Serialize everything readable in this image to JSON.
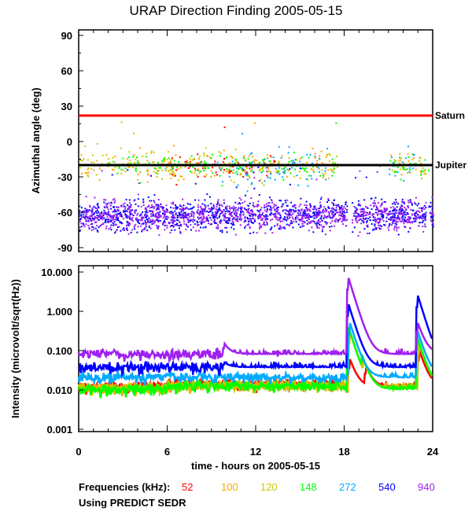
{
  "chart_data": [
    {
      "type": "scatter",
      "title": "URAP Direction Finding  2005-05-15",
      "ylabel": "Azimuthal angle (deg)",
      "xlim": [
        0,
        24
      ],
      "ylim": [
        -90,
        90
      ],
      "yticks": [
        "90",
        "60",
        "30",
        "0",
        "-30",
        "-60",
        "-90"
      ],
      "yticks_values": [
        90,
        60,
        30,
        0,
        -30,
        -60,
        -90
      ],
      "reference_lines": [
        {
          "name": "Saturn",
          "value": 22,
          "color": "#ff0000"
        },
        {
          "name": "Jupiter",
          "value": -20,
          "color": "#000000"
        }
      ],
      "series": [
        {
          "name": "52",
          "center": -21,
          "spread": 4,
          "hours": [
            [
              6,
              12
            ],
            [
              12.5,
              13.5
            ]
          ]
        },
        {
          "name": "100",
          "center": -20,
          "spread": 6,
          "hours": [
            [
              0,
              17.5
            ],
            [
              21,
              23.5
            ]
          ]
        },
        {
          "name": "120",
          "center": -20,
          "spread": 6,
          "hours": [
            [
              0,
              17.5
            ],
            [
              21,
              23.5
            ]
          ]
        },
        {
          "name": "148",
          "center": -20,
          "spread": 5,
          "hours": [
            [
              2,
              17.5
            ],
            [
              21,
              23.8
            ]
          ]
        },
        {
          "name": "272",
          "center": -22,
          "spread": 8,
          "hours": [
            [
              9,
              17
            ],
            [
              21,
              23
            ]
          ]
        },
        {
          "name": "540",
          "center": -62,
          "spread": 6,
          "hours": [
            [
              0,
              18.2
            ],
            [
              18.5,
              23.5
            ],
            [
              23.7,
              24
            ]
          ]
        },
        {
          "name": "940",
          "center": -62,
          "spread": 6,
          "hours": [
            [
              0,
              18.2
            ],
            [
              18.5,
              23.5
            ],
            [
              23.7,
              24
            ]
          ]
        }
      ]
    },
    {
      "type": "line",
      "ylabel": "Intensity (microvolt/sqrt(Hz))",
      "xlabel": "time - hours on 2005-05-15",
      "xlim": [
        0,
        24
      ],
      "ylim": [
        0.001,
        10
      ],
      "yscale": "log",
      "xticks": [
        "0",
        "6",
        "12",
        "18",
        "24"
      ],
      "xticks_values": [
        0,
        6,
        12,
        18,
        24
      ],
      "yticks": [
        "10.000",
        "1.000",
        "0.100",
        "0.010",
        "0.001"
      ],
      "yticks_values": [
        10,
        1,
        0.1,
        0.01,
        0.001
      ],
      "series": [
        {
          "name": "52",
          "baseline": 0.012,
          "bursts": [
            [
              18.4,
              0.06
            ],
            [
              19.5,
              0.04
            ],
            [
              23.1,
              0.1
            ]
          ]
        },
        {
          "name": "100",
          "baseline": 0.011,
          "bursts": [
            [
              18.4,
              0.3
            ],
            [
              19.3,
              0.06
            ],
            [
              23.1,
              0.15
            ]
          ]
        },
        {
          "name": "120",
          "baseline": 0.011,
          "bursts": [
            [
              18.4,
              0.3
            ],
            [
              19.3,
              0.06
            ],
            [
              23.1,
              0.15
            ]
          ]
        },
        {
          "name": "148",
          "baseline": 0.0105,
          "bursts": [
            [
              18.3,
              0.4
            ],
            [
              19.2,
              0.08
            ],
            [
              23.0,
              0.2
            ]
          ]
        },
        {
          "name": "272",
          "baseline": 0.021,
          "bursts": [
            [
              18.4,
              0.5
            ],
            [
              23.0,
              0.3
            ]
          ]
        },
        {
          "name": "540",
          "baseline": 0.038,
          "bursts": [
            [
              9.9,
              0.05
            ],
            [
              18.3,
              1.5
            ],
            [
              23.0,
              2.5
            ]
          ]
        },
        {
          "name": "940",
          "baseline": 0.082,
          "bursts": [
            [
              9.9,
              0.15
            ],
            [
              18.3,
              7.0
            ],
            [
              23.0,
              0.5
            ]
          ]
        }
      ]
    }
  ],
  "legend": {
    "label": "Frequencies (kHz):",
    "items": [
      {
        "name": "52",
        "color": "#ff0000"
      },
      {
        "name": "100",
        "color": "#ffa500"
      },
      {
        "name": "120",
        "color": "#c8c800"
      },
      {
        "name": "148",
        "color": "#00ff00"
      },
      {
        "name": "272",
        "color": "#00aaff"
      },
      {
        "name": "540",
        "color": "#0000ff"
      },
      {
        "name": "940",
        "color": "#a020f0"
      }
    ],
    "note": "Using PREDICT SEDR"
  }
}
